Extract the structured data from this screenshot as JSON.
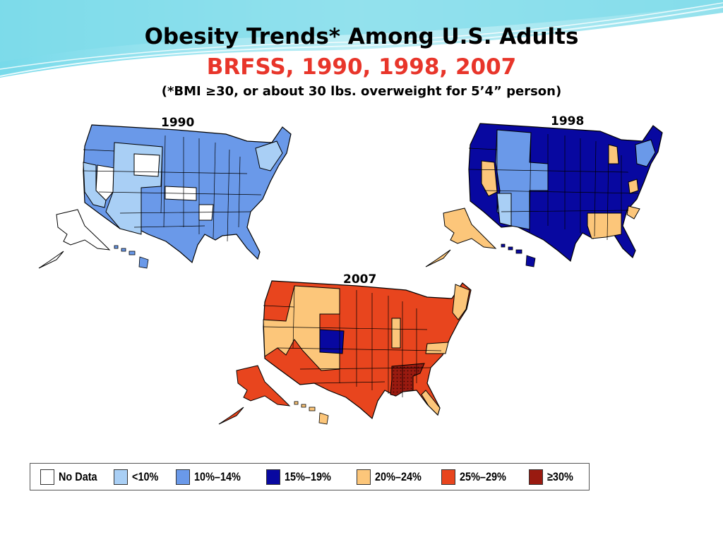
{
  "title": "Obesity Trends* Among U.S. Adults",
  "subtitle": "BRFSS, 1990, 1998, 2007",
  "footnote": "(*BMI ≥30, or about 30 lbs. overweight for 5’4” person)",
  "maps": [
    {
      "year": "1990",
      "dominant_category": "10%–14%"
    },
    {
      "year": "1998",
      "dominant_category": "15%–19%"
    },
    {
      "year": "2007",
      "dominant_category": "25%–29%"
    }
  ],
  "legend": [
    {
      "label": "No Data",
      "color": "#ffffff"
    },
    {
      "label": "<10%",
      "color": "#a9cff5"
    },
    {
      "label": "10%–14%",
      "color": "#6a99e9"
    },
    {
      "label": "15%–19%",
      "color": "#0808a0"
    },
    {
      "label": "20%–24%",
      "color": "#fcc67a"
    },
    {
      "label": "25%–29%",
      "color": "#e8451e"
    },
    {
      "label": "≥30%",
      "color": "#991a10"
    }
  ]
}
